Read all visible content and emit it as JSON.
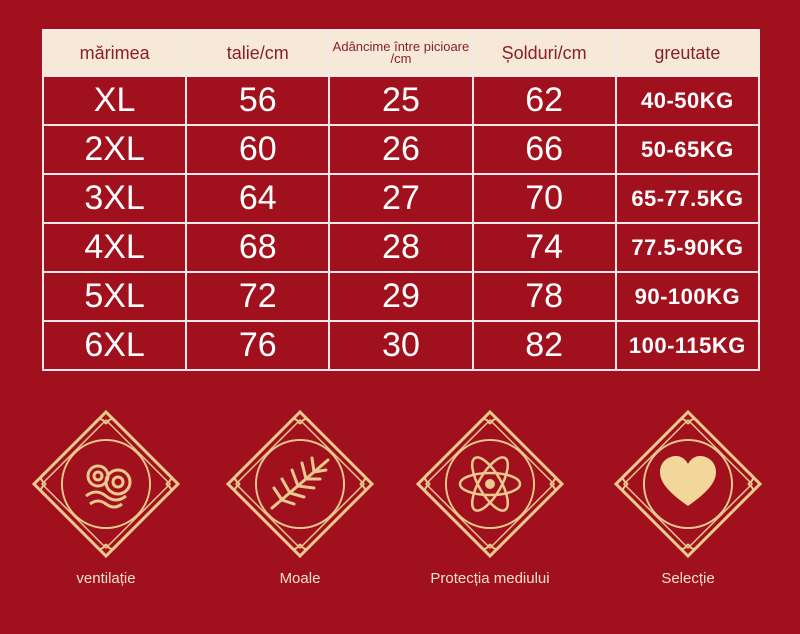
{
  "table": {
    "headers": [
      "mărimea",
      "talie/cm",
      "Adâncime între picioare /cm",
      "Șolduri/cm",
      "greutate"
    ],
    "rows": [
      [
        "XL",
        "56",
        "25",
        "62",
        "40-50KG"
      ],
      [
        "2XL",
        "60",
        "26",
        "66",
        "50-65KG"
      ],
      [
        "3XL",
        "64",
        "27",
        "70",
        "65-77.5KG"
      ],
      [
        "4XL",
        "68",
        "28",
        "74",
        "77.5-90KG"
      ],
      [
        "5XL",
        "72",
        "29",
        "78",
        "90-100KG"
      ],
      [
        "6XL",
        "76",
        "30",
        "82",
        "100-115KG"
      ]
    ]
  },
  "features": [
    {
      "label": "ventilație",
      "icon": "swirl-cloud-icon"
    },
    {
      "label": "Moale",
      "icon": "leaf-icon"
    },
    {
      "label": "Protecția mediului",
      "icon": "atom-icon"
    },
    {
      "label": "Selecție",
      "icon": "heart-icon"
    }
  ],
  "colors": {
    "background": "#a0111d",
    "header_bg": "#f7e9d8",
    "header_text": "#8b1f24",
    "gold": "#e9c98e"
  }
}
